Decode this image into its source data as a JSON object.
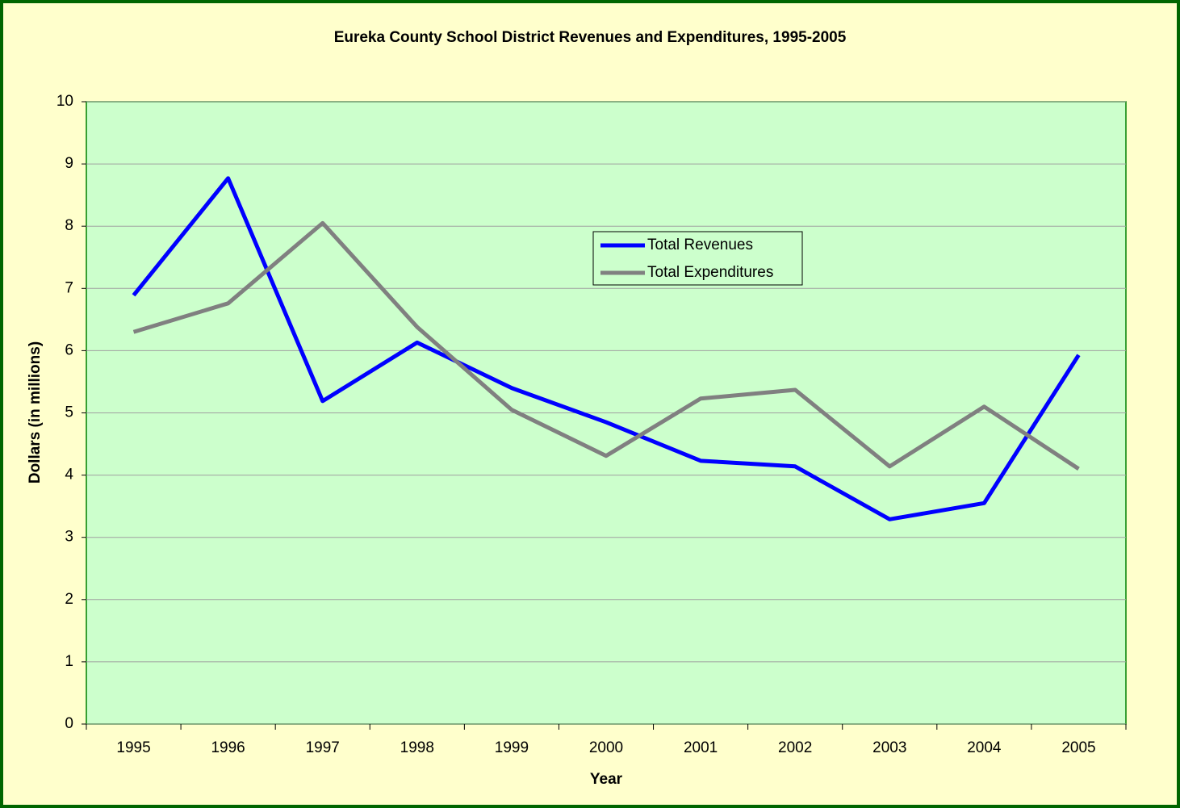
{
  "chart_data": {
    "type": "line",
    "title": "Eureka County School District Revenues and Expenditures, 1995-2005",
    "xlabel": "Year",
    "ylabel": "Dollars (in millions)",
    "categories": [
      "1995",
      "1996",
      "1997",
      "1998",
      "1999",
      "2000",
      "2001",
      "2002",
      "2003",
      "2004",
      "2005"
    ],
    "series": [
      {
        "name": "Total Revenues",
        "color": "#0000ff",
        "values": [
          6.89,
          8.77,
          5.19,
          6.13,
          5.4,
          4.85,
          4.23,
          4.14,
          3.29,
          3.55,
          5.93
        ]
      },
      {
        "name": "Total Expenditures",
        "color": "#808080",
        "values": [
          6.3,
          6.76,
          8.05,
          6.38,
          5.05,
          4.31,
          5.23,
          5.37,
          4.14,
          5.1,
          4.1
        ]
      }
    ],
    "ylim": [
      0,
      10
    ],
    "yticks": [
      0,
      1,
      2,
      3,
      4,
      5,
      6,
      7,
      8,
      9,
      10
    ],
    "grid": true
  }
}
